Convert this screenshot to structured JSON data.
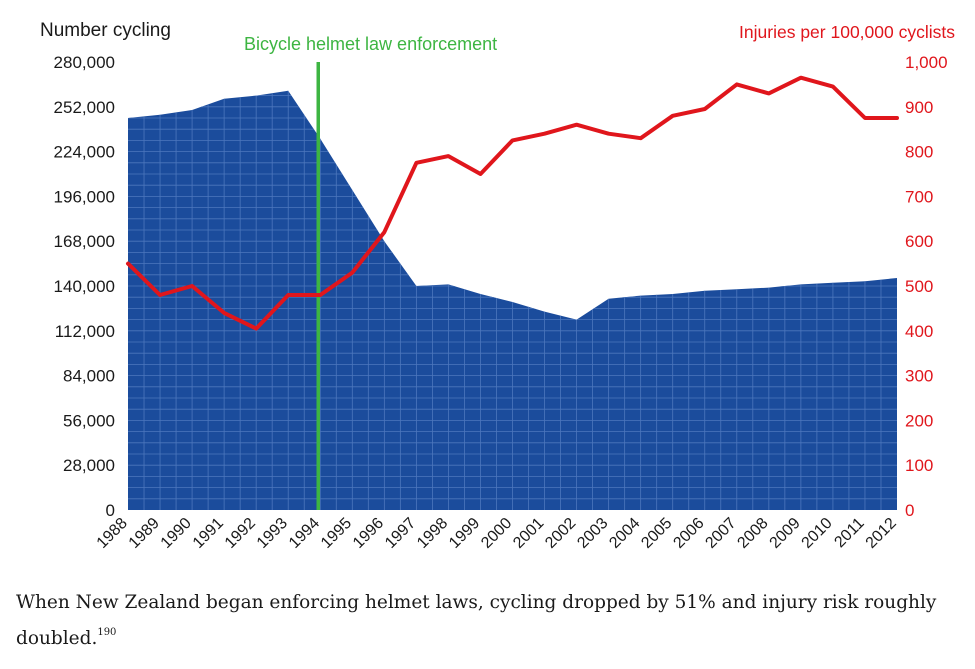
{
  "colors": {
    "area": "#1b4c9c",
    "grid": "#4d77bd",
    "injury_line": "#e0161c",
    "enforcement_line": "#3db542",
    "left_axis_text": "#1a1a1a",
    "right_axis_text": "#e0161c"
  },
  "chart_data": {
    "type": "area",
    "x": [
      "1988",
      "1989",
      "1990",
      "1991",
      "1992",
      "1993",
      "1994",
      "1995",
      "1996",
      "1997",
      "1998",
      "1999",
      "2000",
      "2001",
      "2002",
      "2003",
      "2004",
      "2005",
      "2006",
      "2007",
      "2008",
      "2009",
      "2010",
      "2011",
      "2012"
    ],
    "series": [
      {
        "name": "Number cycling",
        "type": "area",
        "axis": "left",
        "values": [
          245000,
          247000,
          250000,
          257000,
          259000,
          262000,
          232000,
          200000,
          168000,
          140000,
          141000,
          135000,
          130000,
          124000,
          119000,
          132000,
          134000,
          135000,
          137000,
          138000,
          139000,
          141000,
          142000,
          143000,
          145000
        ]
      },
      {
        "name": "Injuries per 100,000 cyclists",
        "type": "line",
        "axis": "right",
        "values": [
          550,
          480,
          500,
          440,
          405,
          480,
          480,
          530,
          620,
          775,
          790,
          750,
          825,
          840,
          860,
          840,
          830,
          880,
          895,
          950,
          930,
          965,
          945,
          875,
          875
        ]
      }
    ],
    "event": {
      "year": "1994",
      "label": "Bicycle helmet law enforcement"
    },
    "left_axis": {
      "label": "Number cycling",
      "ylim": [
        0,
        280000
      ],
      "ticks": [
        0,
        28000,
        56000,
        84000,
        112000,
        140000,
        168000,
        196000,
        224000,
        252000,
        280000
      ],
      "tick_labels": [
        "0",
        "28,000",
        "56,000",
        "84,000",
        "112,000",
        "140,000",
        "168,000",
        "196,000",
        "224,000",
        "252,000",
        "280,000"
      ]
    },
    "right_axis": {
      "label": "Injuries per 100,000 cyclists",
      "ylim": [
        0,
        1000
      ],
      "ticks": [
        0,
        100,
        200,
        300,
        400,
        500,
        600,
        700,
        800,
        900,
        1000
      ],
      "tick_labels": [
        "0",
        "100",
        "200",
        "300",
        "400",
        "500",
        "600",
        "700",
        "800",
        "900",
        "1,000"
      ]
    },
    "grid": true
  },
  "caption": {
    "text": "When New Zealand began enforcing helmet laws, cycling dropped by 51% and injury risk roughly doubled.",
    "reference": "190"
  }
}
